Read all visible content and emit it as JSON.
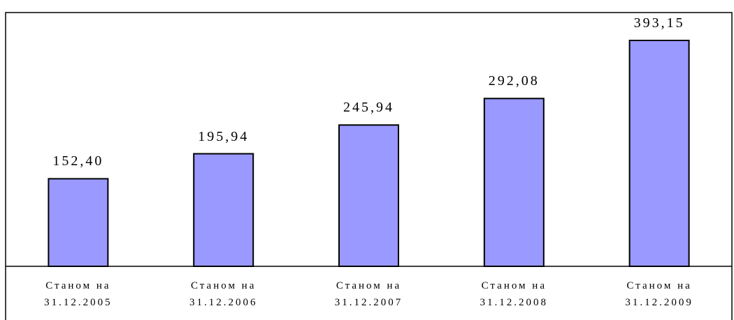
{
  "chart_data": {
    "type": "bar",
    "categories": [
      "Станом на\n31.12.2005",
      "Станом на\n31.12.2006",
      "Станом на\n31.12.2007",
      "Станом на\n31.12.2008",
      "Станом на\n31.12.2009"
    ],
    "values": [
      152.4,
      195.94,
      245.94,
      292.08,
      393.15
    ],
    "value_labels": [
      "152,40",
      "195,94",
      "245,94",
      "292,08",
      "393,15"
    ],
    "color": "#9999ff"
  }
}
